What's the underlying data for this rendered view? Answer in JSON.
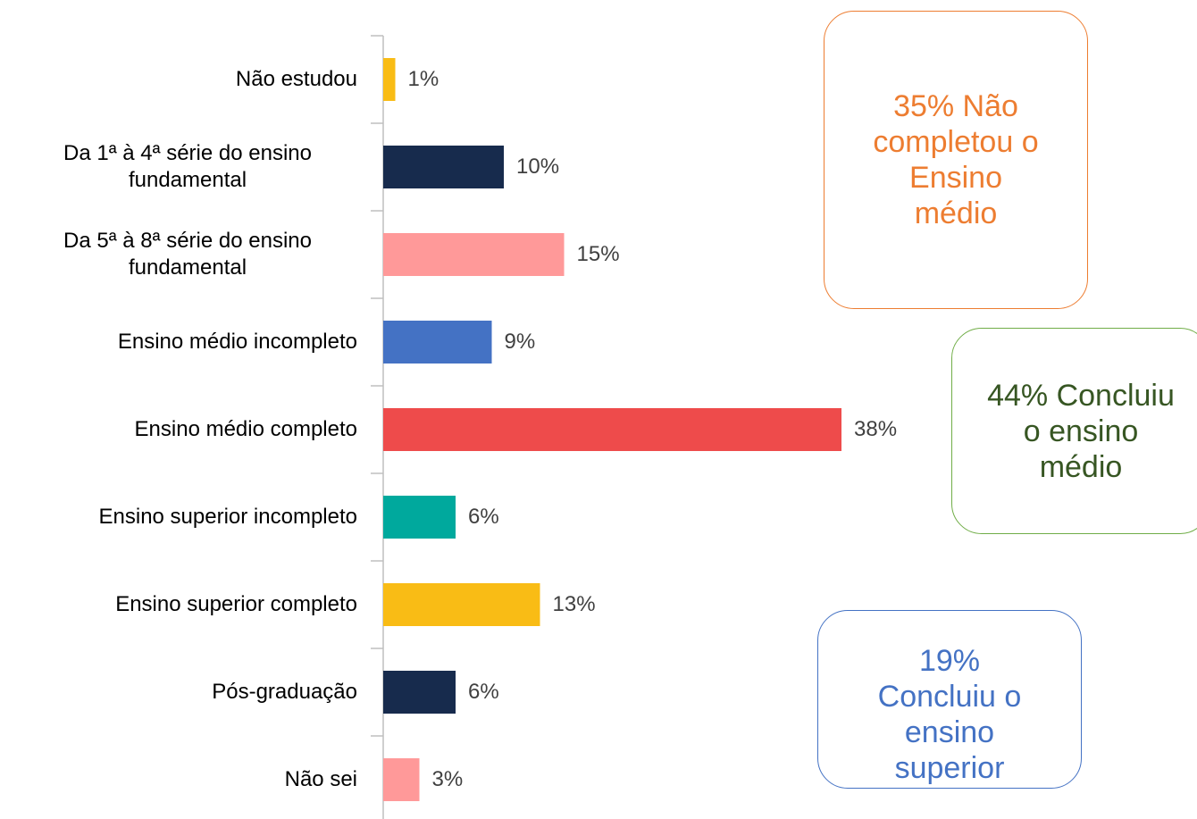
{
  "chart_data": {
    "type": "barh",
    "categories": [
      "Não estudou",
      "Da 1ª à 4ª série do ensino fundamental",
      "Da 5ª à 8ª série do ensino fundamental",
      "Ensino médio incompleto",
      "Ensino médio completo",
      "Ensino superior incompleto",
      "Ensino superior completo",
      "Pós-graduação",
      "Não sei"
    ],
    "values": [
      1,
      10,
      15,
      9,
      38,
      6,
      13,
      6,
      3
    ],
    "value_labels": [
      "1%",
      "10%",
      "15%",
      "9%",
      "38%",
      "6%",
      "13%",
      "6%",
      "3%"
    ],
    "colors": [
      "#f9bc15",
      "#172b4d",
      "#ff9999",
      "#4472c4",
      "#ee4b4b",
      "#00a99d",
      "#f9bc15",
      "#172b4d",
      "#ff9999"
    ],
    "xlim": [
      0,
      40
    ],
    "annotations": [
      {
        "text": "35% Não completou o Ensino médio",
        "color": "#ed7d31",
        "border": "#ed7d31"
      },
      {
        "text": "44% Concluiu o ensino médio",
        "color": "#375623",
        "border": "#70ad47"
      },
      {
        "text": "19% Concluiu o ensino superior",
        "color": "#4472c4",
        "border": "#4472c4"
      }
    ]
  }
}
